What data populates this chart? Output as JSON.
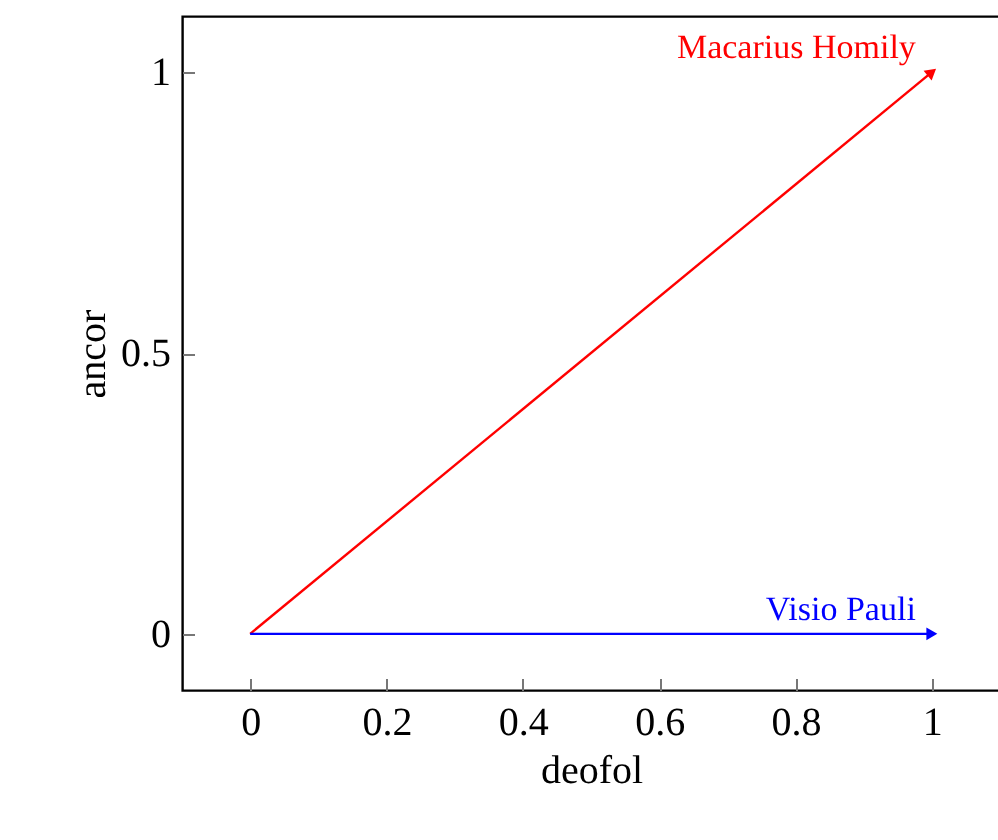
{
  "chart_data": {
    "type": "line",
    "xlabel": "deofol",
    "ylabel": "ancor",
    "x": [
      0,
      1
    ],
    "series": [
      {
        "name": "Macarius Homily",
        "color": "#ff0000",
        "values": [
          0,
          1
        ]
      },
      {
        "name": "Visio Pauli",
        "color": "#0000ff",
        "values": [
          0,
          0
        ]
      }
    ],
    "xlim": [
      -0.1,
      1.1
    ],
    "ylim": [
      -0.1,
      1.1
    ],
    "xticks": [
      0,
      0.2,
      0.4,
      0.6,
      0.8,
      1
    ],
    "yticks": [
      0,
      0.5,
      1
    ]
  }
}
